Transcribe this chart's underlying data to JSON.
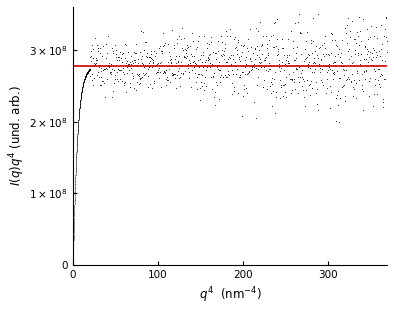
{
  "xlabel": "$q^4$  (nm$^{-4}$)",
  "ylabel": "$I(q)q^4$ (und. arb.)",
  "xlim": [
    0,
    370
  ],
  "ylim": [
    0,
    360000000.0
  ],
  "xticks": [
    0,
    100,
    200,
    300
  ],
  "yticks": [
    0,
    100000000.0,
    200000000.0,
    300000000.0
  ],
  "ytick_labels": [
    "0",
    "1×10$^8$",
    "2×10$^8$",
    "3×10$^8$"
  ],
  "porod_line_y": 278000000.0,
  "porod_line_color": "#cc0000",
  "scatter_color": "black",
  "background_color": "#ffffff",
  "scatter_size": 1.0,
  "rise_tau": 5.0,
  "noise_seed": 42
}
